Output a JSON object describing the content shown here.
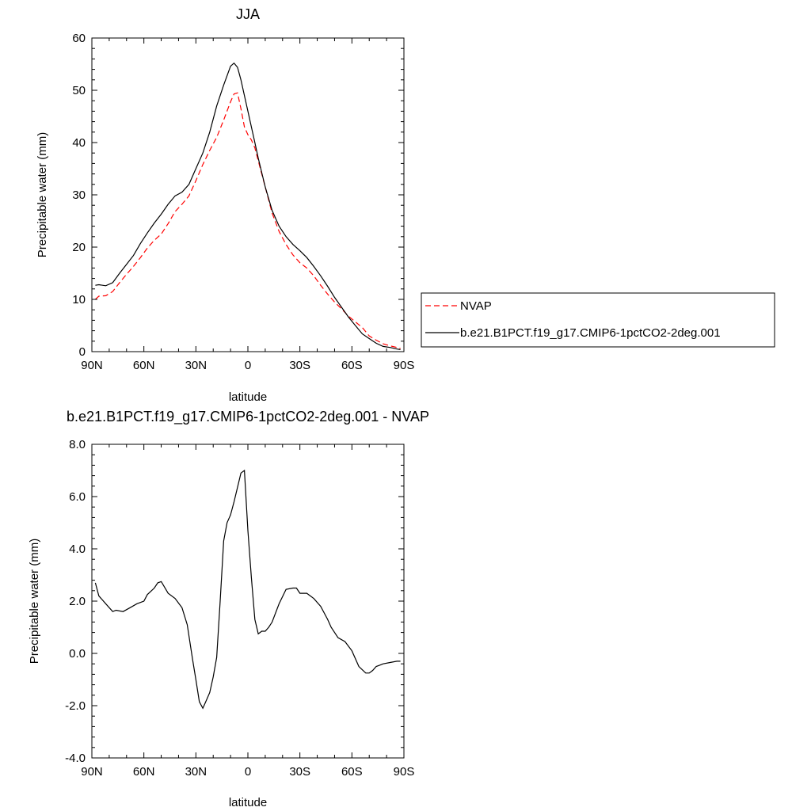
{
  "chart_data": [
    {
      "type": "line",
      "title": "JJA",
      "xlabel": "latitude",
      "ylabel": "Precipitable water (mm)",
      "xlim": [
        -90,
        90
      ],
      "ylim": [
        0,
        60
      ],
      "x_ticks": [
        {
          "value": -90,
          "label": "90N"
        },
        {
          "value": -60,
          "label": "60N"
        },
        {
          "value": -30,
          "label": "30N"
        },
        {
          "value": 0,
          "label": "0"
        },
        {
          "value": 30,
          "label": "30S"
        },
        {
          "value": 60,
          "label": "60S"
        },
        {
          "value": 90,
          "label": "90S"
        }
      ],
      "y_ticks": [
        {
          "value": 0,
          "label": "0"
        },
        {
          "value": 10,
          "label": "10"
        },
        {
          "value": 20,
          "label": "20"
        },
        {
          "value": 30,
          "label": "30"
        },
        {
          "value": 40,
          "label": "40"
        },
        {
          "value": 50,
          "label": "50"
        },
        {
          "value": 60,
          "label": "60"
        }
      ],
      "legend_position": "right",
      "series": [
        {
          "name": "NVAP",
          "color": "#ff0000",
          "dash": "dashed",
          "x": [
            -88,
            -86,
            -82,
            -78,
            -74,
            -70,
            -66,
            -62,
            -58,
            -54,
            -50,
            -46,
            -42,
            -38,
            -34,
            -30,
            -26,
            -22,
            -18,
            -14,
            -10,
            -8,
            -6,
            -4,
            -2,
            0,
            2,
            4,
            6,
            10,
            14,
            18,
            22,
            26,
            30,
            34,
            38,
            42,
            46,
            50,
            54,
            58,
            62,
            66,
            70,
            74,
            78,
            82,
            86,
            88
          ],
          "y": [
            10.0,
            10.6,
            10.7,
            11.5,
            13.2,
            14.8,
            16.3,
            18.0,
            19.8,
            21.3,
            22.5,
            24.5,
            26.8,
            28.2,
            29.8,
            32.7,
            35.8,
            38.5,
            41.0,
            44.3,
            47.8,
            49.3,
            49.5,
            46.5,
            43.0,
            41.5,
            40.5,
            39.0,
            36.5,
            31.5,
            26.5,
            23.0,
            20.5,
            18.5,
            17.0,
            16.0,
            14.5,
            12.7,
            11.0,
            9.5,
            8.2,
            6.8,
            5.7,
            4.6,
            3.0,
            2.2,
            1.5,
            1.1,
            0.8,
            0.6
          ]
        },
        {
          "name": "b.e21.B1PCT.f19_g17.CMIP6-1pctCO2-2deg.001",
          "color": "#000000",
          "dash": "solid",
          "x": [
            -88,
            -86,
            -82,
            -78,
            -74,
            -70,
            -66,
            -62,
            -58,
            -54,
            -50,
            -46,
            -42,
            -38,
            -34,
            -30,
            -26,
            -22,
            -18,
            -14,
            -10,
            -8,
            -6,
            -4,
            -2,
            0,
            2,
            4,
            6,
            10,
            14,
            18,
            22,
            26,
            30,
            34,
            38,
            42,
            46,
            50,
            54,
            58,
            62,
            66,
            70,
            74,
            78,
            82,
            86,
            88
          ],
          "y": [
            12.7,
            12.8,
            12.6,
            13.2,
            15.0,
            16.7,
            18.4,
            20.7,
            22.7,
            24.6,
            26.3,
            28.2,
            29.8,
            30.5,
            32.0,
            35.0,
            38.0,
            42.0,
            47.0,
            51.0,
            54.6,
            55.2,
            54.4,
            52.0,
            49.0,
            46.0,
            43.0,
            40.0,
            37.0,
            31.5,
            27.0,
            24.0,
            22.0,
            20.5,
            19.3,
            18.0,
            16.3,
            14.5,
            12.5,
            10.4,
            8.5,
            6.6,
            5.0,
            3.4,
            2.5,
            1.6,
            1.0,
            0.8,
            0.5,
            0.4
          ]
        }
      ]
    },
    {
      "type": "line",
      "title": "b.e21.B1PCT.f19_g17.CMIP6-1pctCO2-2deg.001 - NVAP",
      "xlabel": "latitude",
      "ylabel": "Precipitable water (mm)",
      "xlim": [
        -90,
        90
      ],
      "ylim": [
        -4,
        8
      ],
      "x_ticks": [
        {
          "value": -90,
          "label": "90N"
        },
        {
          "value": -60,
          "label": "60N"
        },
        {
          "value": -30,
          "label": "30N"
        },
        {
          "value": 0,
          "label": "0"
        },
        {
          "value": 30,
          "label": "30S"
        },
        {
          "value": 60,
          "label": "60S"
        },
        {
          "value": 90,
          "label": "90S"
        }
      ],
      "y_ticks": [
        {
          "value": -4,
          "label": "-4.0"
        },
        {
          "value": -2,
          "label": "-2.0"
        },
        {
          "value": 0,
          "label": "0.0"
        },
        {
          "value": 2,
          "label": "2.0"
        },
        {
          "value": 4,
          "label": "4.0"
        },
        {
          "value": 6,
          "label": "6.0"
        },
        {
          "value": 8,
          "label": "8.0"
        }
      ],
      "series": [
        {
          "color": "#000000",
          "dash": "solid",
          "x": [
            -88,
            -86,
            -82,
            -78,
            -76,
            -72,
            -68,
            -64,
            -60,
            -58,
            -54,
            -52,
            -50,
            -46,
            -42,
            -38,
            -35,
            -32,
            -30,
            -28,
            -26,
            -24,
            -22,
            -20,
            -18,
            -16,
            -14,
            -12,
            -10,
            -8,
            -4,
            -2,
            0,
            2,
            4,
            6,
            8,
            10,
            12,
            14,
            18,
            22,
            26,
            28,
            30,
            34,
            38,
            42,
            46,
            48,
            52,
            56,
            60,
            64,
            68,
            70,
            72,
            74,
            76,
            78,
            82,
            86,
            88
          ],
          "y": [
            2.7,
            2.2,
            1.9,
            1.6,
            1.65,
            1.6,
            1.75,
            1.9,
            2.0,
            2.25,
            2.5,
            2.7,
            2.75,
            2.3,
            2.1,
            1.75,
            1.1,
            -0.2,
            -1.0,
            -1.85,
            -2.1,
            -1.8,
            -1.5,
            -0.9,
            -0.15,
            2.0,
            4.3,
            5.0,
            5.3,
            5.8,
            6.9,
            7.0,
            4.7,
            2.9,
            1.3,
            0.75,
            0.85,
            0.85,
            1.0,
            1.2,
            1.9,
            2.45,
            2.5,
            2.5,
            2.3,
            2.3,
            2.1,
            1.8,
            1.3,
            1.0,
            0.6,
            0.45,
            0.1,
            -0.5,
            -0.75,
            -0.75,
            -0.65,
            -0.5,
            -0.45,
            -0.4,
            -0.35,
            -0.3,
            -0.3
          ]
        }
      ]
    }
  ]
}
